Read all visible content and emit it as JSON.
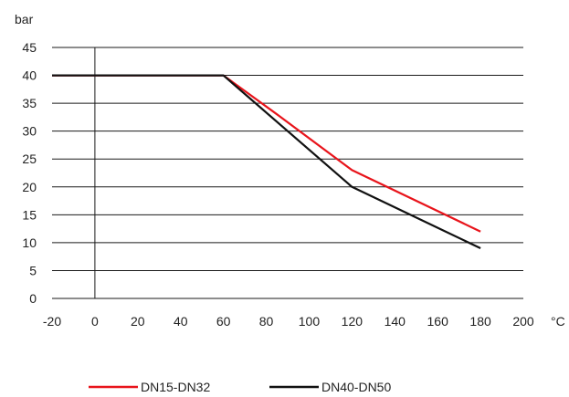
{
  "chart_data": {
    "type": "line",
    "title": "",
    "xlabel": "°C",
    "ylabel": "bar",
    "xlim": [
      -20,
      200
    ],
    "ylim": [
      0,
      45
    ],
    "x_ticks": [
      -20,
      0,
      20,
      40,
      60,
      80,
      100,
      120,
      140,
      160,
      180,
      200
    ],
    "y_ticks": [
      0,
      5,
      10,
      15,
      20,
      25,
      30,
      35,
      40,
      45
    ],
    "grid": "horizontal",
    "legend_position": "bottom",
    "series": [
      {
        "name": "DN15-DN32",
        "color": "#e8141b",
        "points": [
          [
            -20,
            40
          ],
          [
            60,
            40
          ],
          [
            85,
            33
          ],
          [
            120,
            23
          ],
          [
            180,
            12
          ]
        ]
      },
      {
        "name": "DN40-DN50",
        "color": "#111111",
        "points": [
          [
            -20,
            40
          ],
          [
            60,
            40
          ],
          [
            120,
            20
          ],
          [
            180,
            9
          ]
        ]
      }
    ]
  }
}
